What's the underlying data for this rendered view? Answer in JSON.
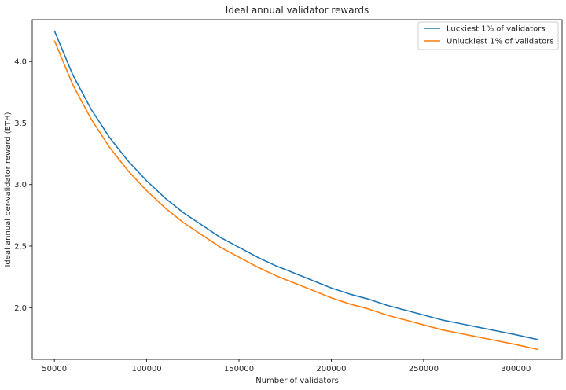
{
  "chart_data": {
    "type": "line",
    "title": "Ideal annual validator rewards",
    "xlabel": "Number of validators",
    "ylabel": "Ideal annual per-validator reward (ETH)",
    "xlim": [
      38000,
      325000
    ],
    "ylim": [
      1.58,
      4.34
    ],
    "xticks": [
      50000,
      100000,
      150000,
      200000,
      250000,
      300000
    ],
    "yticks": [
      2.0,
      2.5,
      3.0,
      3.5,
      4.0
    ],
    "ytick_labels": [
      "2.0",
      "2.5",
      "3.0",
      "3.5",
      "4.0"
    ],
    "grid": false,
    "legend_position": "top-right",
    "x": [
      50000,
      60000,
      70000,
      80000,
      90000,
      100000,
      110000,
      120000,
      130000,
      140000,
      150000,
      160000,
      170000,
      180000,
      190000,
      200000,
      210000,
      220000,
      230000,
      240000,
      250000,
      260000,
      270000,
      280000,
      290000,
      300000,
      312000
    ],
    "series": [
      {
        "name": "Luckiest 1% of validators",
        "color": "#1f77b4",
        "values": [
          4.25,
          3.89,
          3.61,
          3.38,
          3.19,
          3.03,
          2.89,
          2.77,
          2.67,
          2.57,
          2.49,
          2.41,
          2.34,
          2.28,
          2.22,
          2.16,
          2.11,
          2.07,
          2.02,
          1.98,
          1.94,
          1.9,
          1.87,
          1.84,
          1.81,
          1.78,
          1.74
        ]
      },
      {
        "name": "Unluckiest 1% of validators",
        "color": "#ff7f0e",
        "values": [
          4.17,
          3.81,
          3.53,
          3.3,
          3.11,
          2.95,
          2.81,
          2.69,
          2.59,
          2.49,
          2.41,
          2.33,
          2.26,
          2.2,
          2.14,
          2.08,
          2.03,
          1.99,
          1.94,
          1.9,
          1.86,
          1.82,
          1.79,
          1.76,
          1.73,
          1.7,
          1.66
        ]
      }
    ]
  }
}
